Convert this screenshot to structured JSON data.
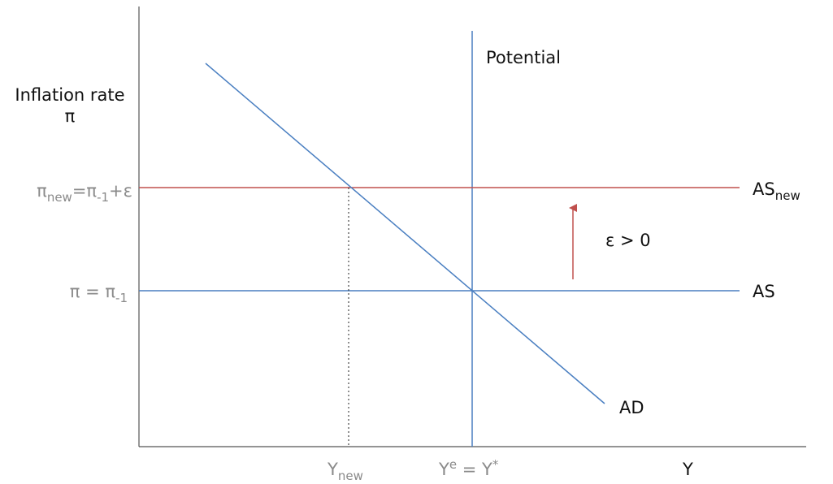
{
  "labels": {
    "y_axis_title_line1": "Inflation rate",
    "y_axis_title_line2": "π",
    "x_axis_title": "Y",
    "potential": "Potential",
    "ad": "AD",
    "as": "AS",
    "as_new_base": "AS",
    "as_new_sub": "new",
    "shock": "ε > 0",
    "pi_new_base": "π",
    "pi_new_sub": "new",
    "pi_new_mid": "=π",
    "pi_new_sub2": "-1",
    "pi_new_tail": "+ε",
    "pi_base": "π = π",
    "pi_base_sub": "-1",
    "y_new_base": "Y",
    "y_new_sub": "new",
    "y_e_base": "Y",
    "y_e_sup": "e",
    "y_e_mid": " = Y",
    "y_e_sup2": "*"
  },
  "colors": {
    "axis": "#555555",
    "blue": "#4a7fc1",
    "red": "#c0504d",
    "label_dark": "#111111",
    "label_grey": "#8a8a8a"
  }
}
